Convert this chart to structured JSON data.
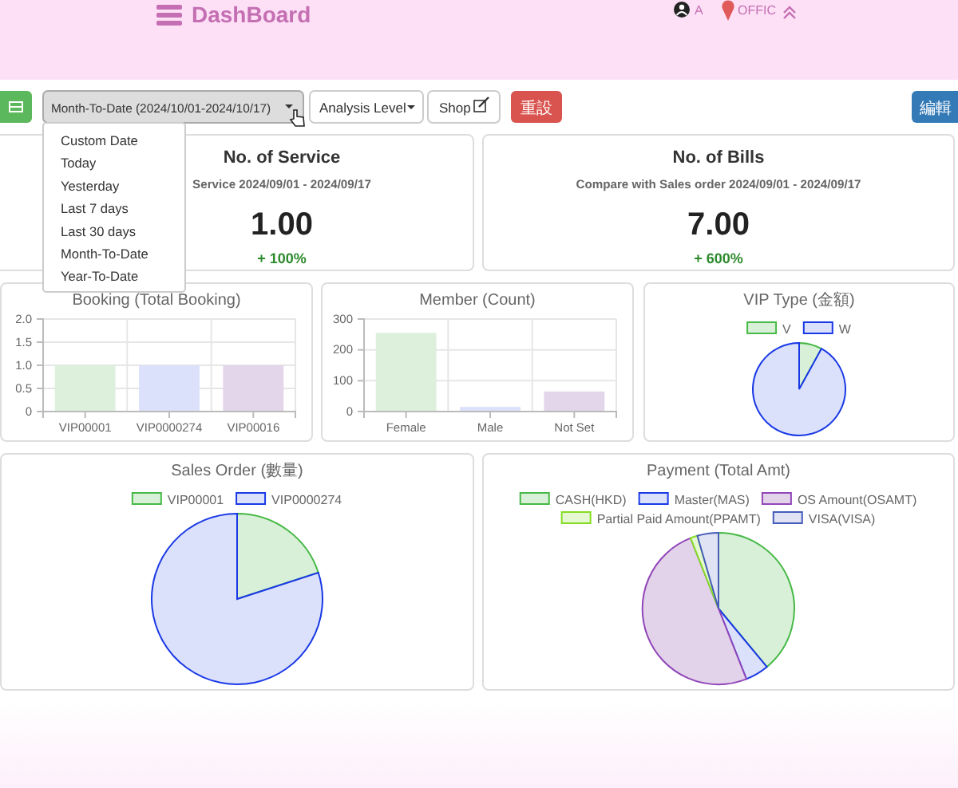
{
  "chart_data": [
    {
      "type": "other",
      "title": "DashBoard",
      "annotations": [
        "A",
        "OFFIC",
        "Month-To-Date (2024/10/01-2024/10/17)",
        "Analysis Level",
        "Shop",
        "重設",
        "編輯",
        "Custom Date",
        "Today",
        "Yesterday",
        "Last 7 days",
        "Last 30 days",
        "Month-To-Date",
        "Year-To-Date"
      ]
    },
    {
      "type": "other",
      "title": "No. of Service",
      "subtitle": "Service 2024/09/01 - 2024/09/17",
      "annotations": [
        "1.00",
        "+ 100%"
      ]
    },
    {
      "type": "other",
      "title": "No. of Bills",
      "subtitle": "Compare with Sales order 2024/09/01 - 2024/09/17",
      "annotations": [
        "7.00",
        "+ 600%"
      ]
    },
    {
      "type": "bar",
      "title": "Booking (Total Booking)",
      "categories": [
        "VIP00001",
        "VIP0000274",
        "VIP00016"
      ],
      "values": [
        1,
        1,
        1
      ],
      "colors": [
        "#dcf0dc",
        "#dce1fb",
        "#e3d5ea"
      ],
      "ylim": [
        0,
        2
      ],
      "yticks": [
        0,
        0.5,
        {
          "value": 1,
          "label": "1.0"
        },
        1.5,
        {
          "value": 2,
          "label": "2.0"
        }
      ],
      "grid": true
    },
    {
      "type": "bar",
      "title": "Member (Count)",
      "categories": [
        "Female",
        "Male",
        "Not Set"
      ],
      "values": [
        255,
        15,
        65
      ],
      "colors": [
        "#dcf0dc",
        "#dce1fb",
        "#e3d5ea"
      ],
      "ylim": [
        0,
        300
      ],
      "yticks": [
        0,
        100,
        200,
        300
      ],
      "grid": true
    },
    {
      "type": "pie",
      "title": "VIP Type (金額)",
      "categories": [
        "V",
        "W"
      ],
      "values": [
        8,
        92
      ],
      "colors": [
        "#d8f0d8",
        "#dbe0fb"
      ],
      "legend": "top"
    },
    {
      "type": "pie",
      "title": "Sales Order (數量)",
      "categories": [
        "VIP00001",
        "VIP0000274"
      ],
      "values": [
        20,
        80
      ],
      "colors": [
        "#d8f0d8",
        "#dbe0fb"
      ],
      "legend": "top"
    },
    {
      "type": "pie",
      "title": "Payment (Total Amt)",
      "categories": [
        "CASH(HKD)",
        "Master(MAS)",
        "OS Amount(OSAMT)",
        "Partial Paid Amount(PPAMT)",
        "VISA(VISA)"
      ],
      "values": [
        39,
        5,
        50,
        1.5,
        4.5
      ],
      "colors": [
        "#d8f0d8",
        "#dbe0fb",
        "#e2d3ea",
        "#e6f8d2",
        "#dfe3f3"
      ],
      "legend": "top"
    }
  ]
}
